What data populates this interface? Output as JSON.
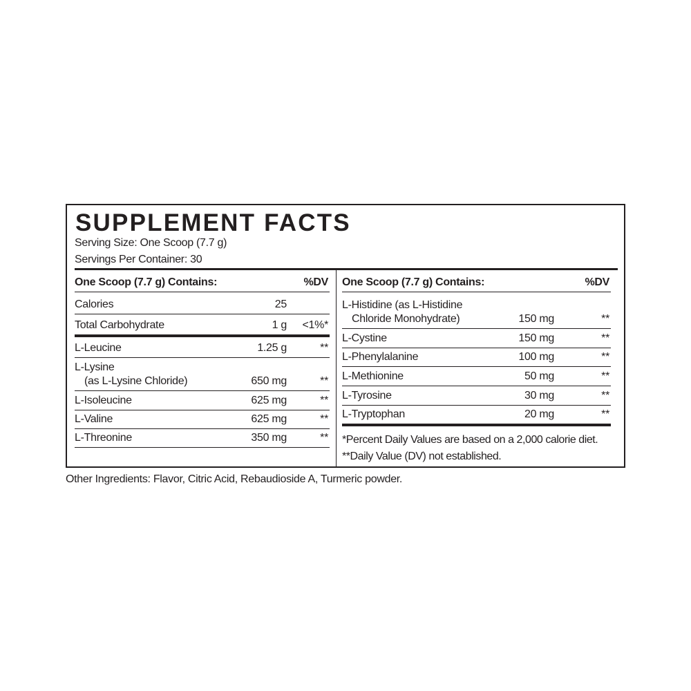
{
  "title": "SUPPLEMENT FACTS",
  "serving_size": "Serving Size: One Scoop (7.7 g)",
  "servings_per_container": "Servings Per Container: 30",
  "left": {
    "header": {
      "label": "One Scoop (7.7 g) Contains:",
      "dv": "%DV"
    },
    "rows": [
      {
        "name": "Calories",
        "amount": "25",
        "dv": ""
      },
      {
        "name": "Total Carbohydrate",
        "amount": "1 g",
        "dv": "<1%*"
      },
      {
        "name": "L-Leucine",
        "amount": "1.25 g",
        "dv": "**"
      },
      {
        "name": "L-Lysine",
        "name2": "(as L-Lysine Chloride)",
        "amount": "650 mg",
        "dv": "**"
      },
      {
        "name": "L-Isoleucine",
        "amount": "625 mg",
        "dv": "**"
      },
      {
        "name": "L-Valine",
        "amount": "625 mg",
        "dv": "**"
      },
      {
        "name": "L-Threonine",
        "amount": "350 mg",
        "dv": "**"
      }
    ]
  },
  "right": {
    "header": {
      "label": "One Scoop (7.7 g) Contains:",
      "dv": "%DV"
    },
    "rows": [
      {
        "name": "L-Histidine (as L-Histidine",
        "name2": "Chloride Monohydrate)",
        "amount": "150 mg",
        "dv": "**"
      },
      {
        "name": "L-Cystine",
        "amount": "150 mg",
        "dv": "**"
      },
      {
        "name": "L-Phenylalanine",
        "amount": "100 mg",
        "dv": "**"
      },
      {
        "name": "L-Methionine",
        "amount": "50 mg",
        "dv": "**"
      },
      {
        "name": "L-Tyrosine",
        "amount": "30 mg",
        "dv": "**"
      },
      {
        "name": "L-Tryptophan",
        "amount": "20 mg",
        "dv": "**"
      }
    ],
    "footnotes": [
      "*Percent Daily Values are based on a 2,000 calorie diet.",
      "**Daily Value (DV) not established."
    ]
  },
  "other_ingredients": "Other Ingredients: Flavor, Citric Acid, Rebaudioside A, Turmeric powder."
}
